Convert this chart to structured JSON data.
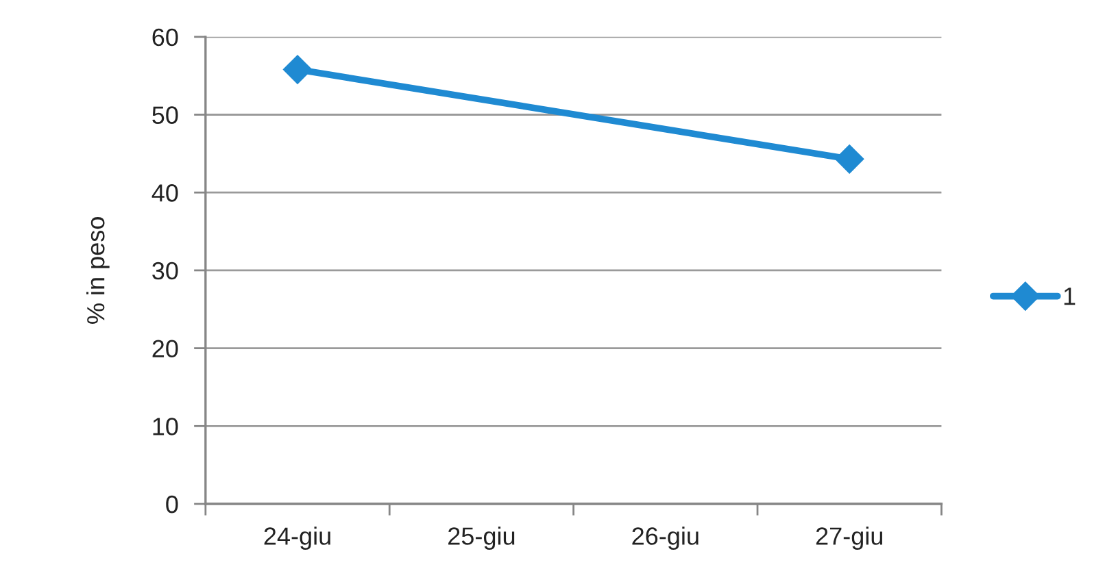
{
  "chart_data": {
    "type": "line",
    "ylabel": "% in peso",
    "categories": [
      "24-giu",
      "25-giu",
      "26-giu",
      "27-giu"
    ],
    "series": [
      {
        "name": "1",
        "color": "#1f8ad2",
        "x": [
          "24-giu",
          "27-giu"
        ],
        "values": [
          55.8,
          44.3
        ]
      }
    ],
    "ylim": [
      0,
      60
    ],
    "yticks": [
      0,
      10,
      20,
      30,
      40,
      50,
      60
    ],
    "grid": "y",
    "legend": "right",
    "marker": "diamond",
    "line_style": "solid"
  }
}
